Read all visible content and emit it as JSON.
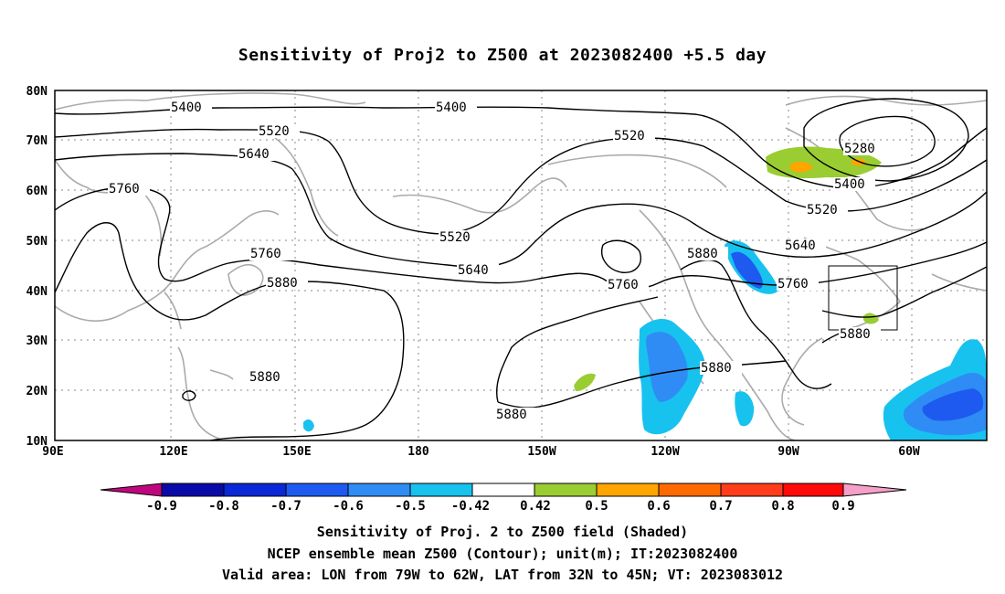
{
  "title": "Sensitivity of Proj2 to Z500 at 2023082400 +5.5 day",
  "lat_labels": [
    "80N",
    "70N",
    "60N",
    "50N",
    "40N",
    "30N",
    "20N",
    "10N"
  ],
  "lon_labels": [
    "90E",
    "120E",
    "150E",
    "180",
    "150W",
    "120W",
    "90W",
    "60W"
  ],
  "contour_labels": [
    "5400",
    "5400",
    "5520",
    "5520",
    "5520",
    "5520",
    "5640",
    "5640",
    "5640",
    "5760",
    "5760",
    "5760",
    "5760",
    "5880",
    "5880",
    "5880",
    "5880",
    "5880",
    "5880",
    "5280",
    "5400"
  ],
  "colorbar": {
    "ticks": [
      "-0.9",
      "-0.8",
      "-0.7",
      "-0.6",
      "-0.5",
      "-0.42",
      "0.42",
      "0.5",
      "0.6",
      "0.7",
      "0.8",
      "0.9"
    ],
    "colors": [
      "#c0067f",
      "#0a0aa8",
      "#0a28d6",
      "#1e5af0",
      "#2f8cf5",
      "#17c2ef",
      "#ffffff",
      "#9acd32",
      "#ffa500",
      "#ff6a00",
      "#ff3d1a",
      "#ff0a0a",
      "#f5a0c8"
    ]
  },
  "captions": [
    "Sensitivity of Proj. 2 to Z500 field (Shaded)",
    "NCEP ensemble mean Z500 (Contour); unit(m); IT:2023082400",
    "Valid area: LON from 79W to 62W, LAT from 32N to 45N; VT: 2023083012"
  ]
}
